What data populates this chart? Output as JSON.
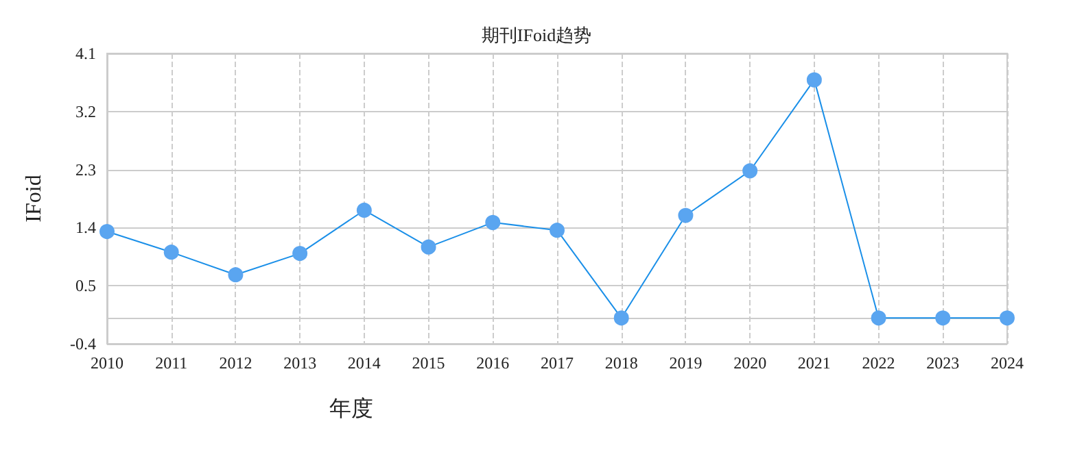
{
  "chart_data": {
    "type": "line",
    "title": "期刊IFoid趋势",
    "xlabel": "年度",
    "ylabel": "IFoid",
    "categories": [
      "2010",
      "2011",
      "2012",
      "2013",
      "2014",
      "2015",
      "2016",
      "2017",
      "2018",
      "2019",
      "2020",
      "2021",
      "2022",
      "2023",
      "2024"
    ],
    "series": [
      {
        "color": "#1a8fe8",
        "values": [
          1.34,
          1.02,
          0.67,
          1.0,
          1.67,
          1.1,
          1.48,
          1.36,
          0,
          1.59,
          2.28,
          3.69,
          0,
          0,
          0
        ]
      }
    ],
    "ylim": [
      -0.4,
      4.1
    ],
    "yticks": [
      -0.4,
      0.5,
      1.4,
      2.3,
      3.2,
      4.1
    ],
    "grid": true,
    "marker": "circle",
    "line_style": "solid"
  }
}
